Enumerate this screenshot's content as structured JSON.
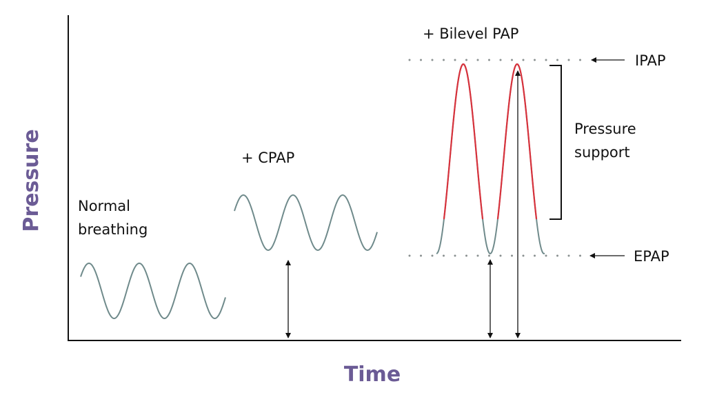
{
  "axes": {
    "y_label": "Pressure",
    "x_label": "Time"
  },
  "labels": {
    "normal_line1": "Normal",
    "normal_line2": "breathing",
    "cpap": "+  CPAP",
    "bilevel": "+  Bilevel PAP",
    "ipap": "IPAP",
    "epap": "EPAP",
    "support_line1": "Pressure",
    "support_line2": "support"
  },
  "colors": {
    "axis_title": "#6b5b95",
    "wave": "#6f8a8b",
    "pressure_support": "#d8323c",
    "axis": "#111111",
    "dotted_line": "#8a9191"
  }
}
